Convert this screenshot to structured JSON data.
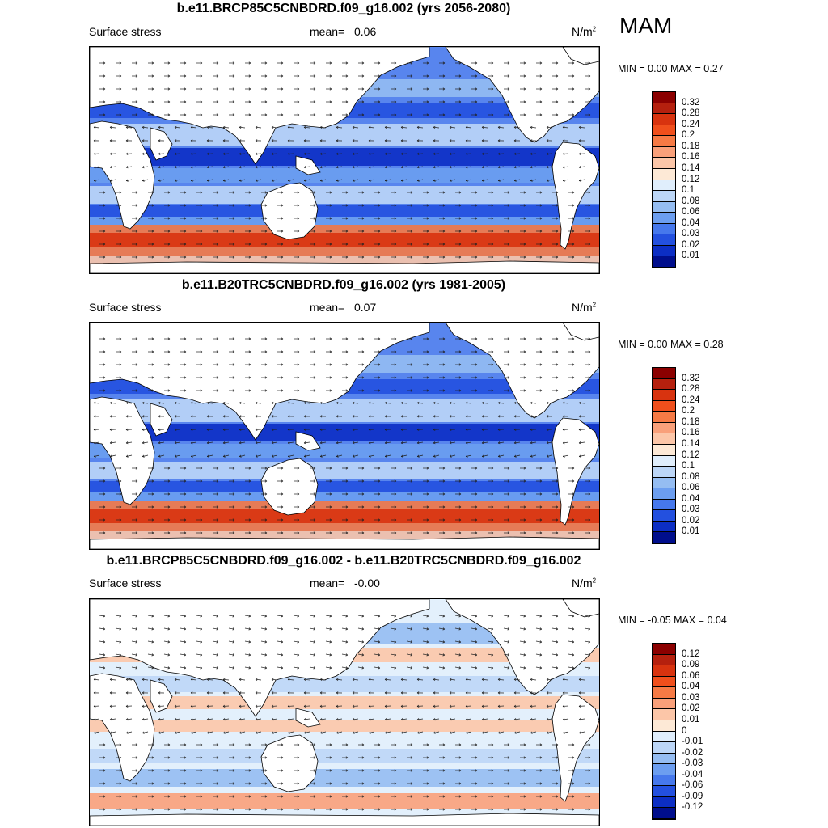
{
  "season": "MAM",
  "panels": [
    {
      "title": "b.e11.BRCP85C5CNBDRD.f09_g16.002 (yrs 2056-2080)",
      "variable": "Surface stress",
      "mean_label": "mean=",
      "mean_value": "0.06",
      "units": "N/m",
      "units_exp": "2",
      "minmax": "MIN =   0.00 MAX =   0.27",
      "colorbar": {
        "labels": [
          "0.32",
          "0.28",
          "0.24",
          "0.2",
          "0.18",
          "0.16",
          "0.14",
          "0.12",
          "0.1",
          "0.08",
          "0.06",
          "0.04",
          "0.03",
          "0.02",
          "0.01"
        ],
        "colors": [
          "#8b0000",
          "#b5200e",
          "#d8330f",
          "#f04f1c",
          "#f67a45",
          "#f9a07a",
          "#fcc6a8",
          "#fde9d6",
          "#e0eefc",
          "#bcd6f7",
          "#95bdf2",
          "#6c9ef0",
          "#4678ec",
          "#2350df",
          "#0c2ec4",
          "#000e8c"
        ]
      }
    },
    {
      "title": "b.e11.B20TRC5CNBDRD.f09_g16.002 (yrs 1981-2005)",
      "variable": "Surface stress",
      "mean_label": "mean=",
      "mean_value": "0.07",
      "units": "N/m",
      "units_exp": "2",
      "minmax": "MIN =   0.00 MAX =   0.28",
      "colorbar": {
        "labels": [
          "0.32",
          "0.28",
          "0.24",
          "0.2",
          "0.18",
          "0.16",
          "0.14",
          "0.12",
          "0.1",
          "0.08",
          "0.06",
          "0.04",
          "0.03",
          "0.02",
          "0.01"
        ],
        "colors": [
          "#8b0000",
          "#b5200e",
          "#d8330f",
          "#f04f1c",
          "#f67a45",
          "#f9a07a",
          "#fcc6a8",
          "#fde9d6",
          "#e0eefc",
          "#bcd6f7",
          "#95bdf2",
          "#6c9ef0",
          "#4678ec",
          "#2350df",
          "#0c2ec4",
          "#000e8c"
        ]
      }
    },
    {
      "title": "b.e11.BRCP85C5CNBDRD.f09_g16.002 - b.e11.B20TRC5CNBDRD.f09_g16.002",
      "variable": "Surface stress",
      "mean_label": "mean=",
      "mean_value": "-0.00",
      "units": "N/m",
      "units_exp": "2",
      "minmax": "MIN =  -0.05 MAX =   0.04",
      "colorbar": {
        "labels": [
          "0.12",
          "0.09",
          "0.06",
          "0.04",
          "0.03",
          "0.02",
          "0.01",
          "0",
          "-0.01",
          "-0.02",
          "-0.03",
          "-0.04",
          "-0.06",
          "-0.09",
          "-0.12"
        ],
        "colors": [
          "#8b0000",
          "#b5200e",
          "#d8330f",
          "#f04f1c",
          "#f67a45",
          "#f9a07a",
          "#fcc6a8",
          "#fde9d6",
          "#e0eefc",
          "#bcd6f7",
          "#95bdf2",
          "#6c9ef0",
          "#4678ec",
          "#2350df",
          "#0c2ec4",
          "#000e8c"
        ]
      }
    }
  ]
}
